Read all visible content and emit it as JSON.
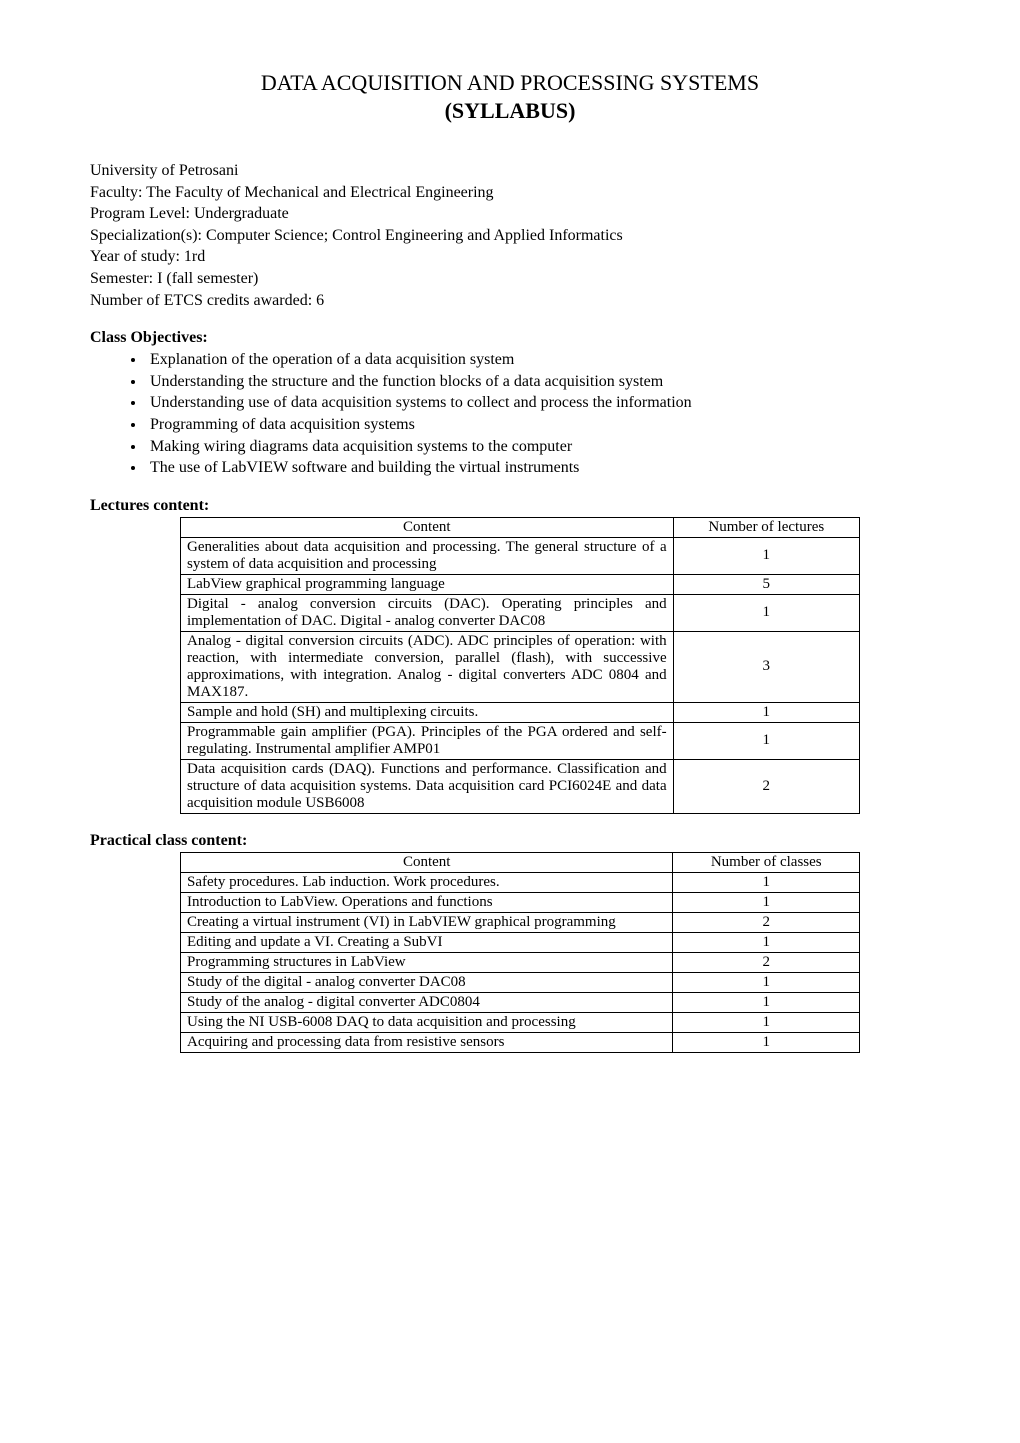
{
  "header": {
    "title": "DATA ACQUISITION AND PROCESSING SYSTEMS",
    "subtitle": "(SYLLABUS)"
  },
  "meta": {
    "university": "University of Petrosani",
    "faculty": "Faculty: The Faculty of Mechanical and Electrical Engineering",
    "program_level": "Program Level: Undergraduate",
    "specialization": "Specialization(s): Computer Science; Control Engineering and Applied Informatics",
    "year": "Year of study: 1rd",
    "semester": "Semester: I (fall semester)",
    "credits": "Number of ETCS credits awarded: 6"
  },
  "objectives": {
    "heading": "Class Objectives:",
    "items": [
      "Explanation of the operation of a data acquisition system",
      "Understanding the structure and the function blocks of a data acquisition system",
      "Understanding use of data acquisition systems to collect and process the information",
      "Programming of data acquisition systems",
      "Making wiring diagrams data acquisition systems to the computer",
      "The use of LabVIEW software and building the virtual instruments"
    ]
  },
  "lectures": {
    "heading": "Lectures content:",
    "columns": [
      "Content",
      "Number of lectures"
    ],
    "rows": [
      {
        "content": "Generalities about data acquisition and processing. The general structure of a system of data acquisition and processing",
        "num": "1"
      },
      {
        "content": "LabView graphical programming language",
        "num": "5"
      },
      {
        "content": "Digital - analog conversion circuits (DAC). Operating principles and implementation of DAC. Digital - analog converter DAC08",
        "num": "1"
      },
      {
        "content": "Analog - digital conversion circuits (ADC).  ADC principles of operation: with reaction, with intermediate conversion, parallel (flash), with successive approximations, with integration.  Analog - digital converters ADC 0804 and MAX187.",
        "num": "3"
      },
      {
        "content": "Sample and hold (SH) and multiplexing circuits.",
        "num": "1"
      },
      {
        "content": "Programmable gain amplifier (PGA). Principles of the PGA ordered and self-regulating. Instrumental amplifier AMP01",
        "num": "1"
      },
      {
        "content": "Data acquisition cards (DAQ). Functions and performance. Classification and structure of data acquisition systems. Data acquisition card PCI6024E and data acquisition module USB6008",
        "num": "2"
      }
    ]
  },
  "practical": {
    "heading": "Practical class content:",
    "columns": [
      "Content",
      "Number of classes"
    ],
    "rows": [
      {
        "content": "Safety procedures. Lab induction. Work procedures.",
        "num": "1"
      },
      {
        "content": "Introduction to LabView. Operations and functions",
        "num": "1"
      },
      {
        "content": "Creating a virtual instrument (VI)  in LabVIEW graphical programming",
        "num": "2"
      },
      {
        "content": "Editing and update a VI. Creating a SubVI",
        "num": "1"
      },
      {
        "content": "Programming structures in LabView",
        "num": "2"
      },
      {
        "content": "Study of the digital - analog converter DAC08",
        "num": "1"
      },
      {
        "content": "Study of the analog - digital  converter ADC0804",
        "num": "1"
      },
      {
        "content": "Using the NI USB-6008 DAQ to data acquisition and processing",
        "num": "1"
      },
      {
        "content": "Acquiring  and processing data from resistive sensors",
        "num": "1"
      }
    ]
  }
}
